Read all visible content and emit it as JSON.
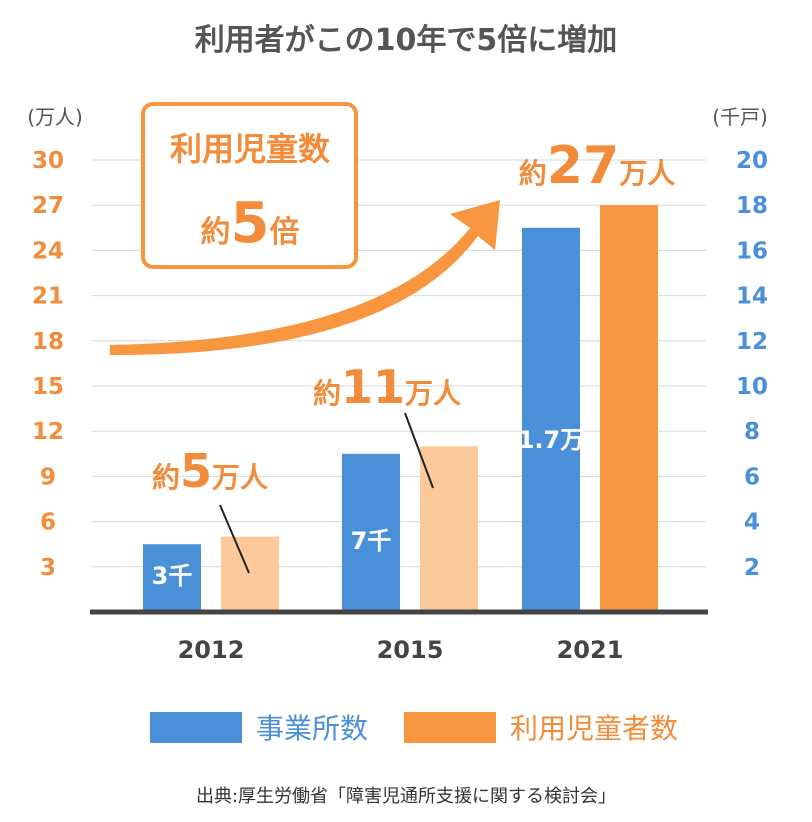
{
  "title": "利用者がこの10年で5倍に増加",
  "left_unit": "(万人)",
  "right_unit": "(千戸)",
  "callout": {
    "line1": "利用児童数",
    "prefix": "約",
    "number": "5",
    "suffix": "倍"
  },
  "annotations": [
    {
      "prefix": "約",
      "number": "5",
      "suffix": "万人"
    },
    {
      "prefix": "約",
      "number": "11",
      "suffix": "万人"
    },
    {
      "prefix": "約",
      "number": "27",
      "suffix": "万人"
    }
  ],
  "bar_labels": [
    "3千",
    "7千",
    "1.7万"
  ],
  "legend": [
    "事業所数",
    "利用児童者数"
  ],
  "source": "出典:厚生労働省「障害児通所支援に関する検討会」",
  "colors": {
    "blue": "#4a90d9",
    "orange": "#f7963e",
    "light_orange": "#fcc99a",
    "title_gray": "#555555"
  },
  "chart_data": {
    "type": "bar",
    "categories": [
      "2012",
      "2015",
      "2021"
    ],
    "series": [
      {
        "name": "事業所数",
        "axis": "right",
        "values": [
          3,
          7,
          17
        ]
      },
      {
        "name": "利用児童者数",
        "axis": "left",
        "values": [
          5,
          11,
          27
        ]
      }
    ],
    "y_left": {
      "label": "(万人)",
      "ticks": [
        3,
        6,
        9,
        12,
        15,
        18,
        21,
        24,
        27,
        30
      ],
      "range": [
        0,
        30
      ]
    },
    "y_right": {
      "label": "(千戸)",
      "ticks": [
        2,
        4,
        6,
        8,
        10,
        12,
        14,
        16,
        18,
        20
      ],
      "range": [
        0,
        20
      ]
    },
    "grid": true,
    "legend_position": "bottom"
  }
}
